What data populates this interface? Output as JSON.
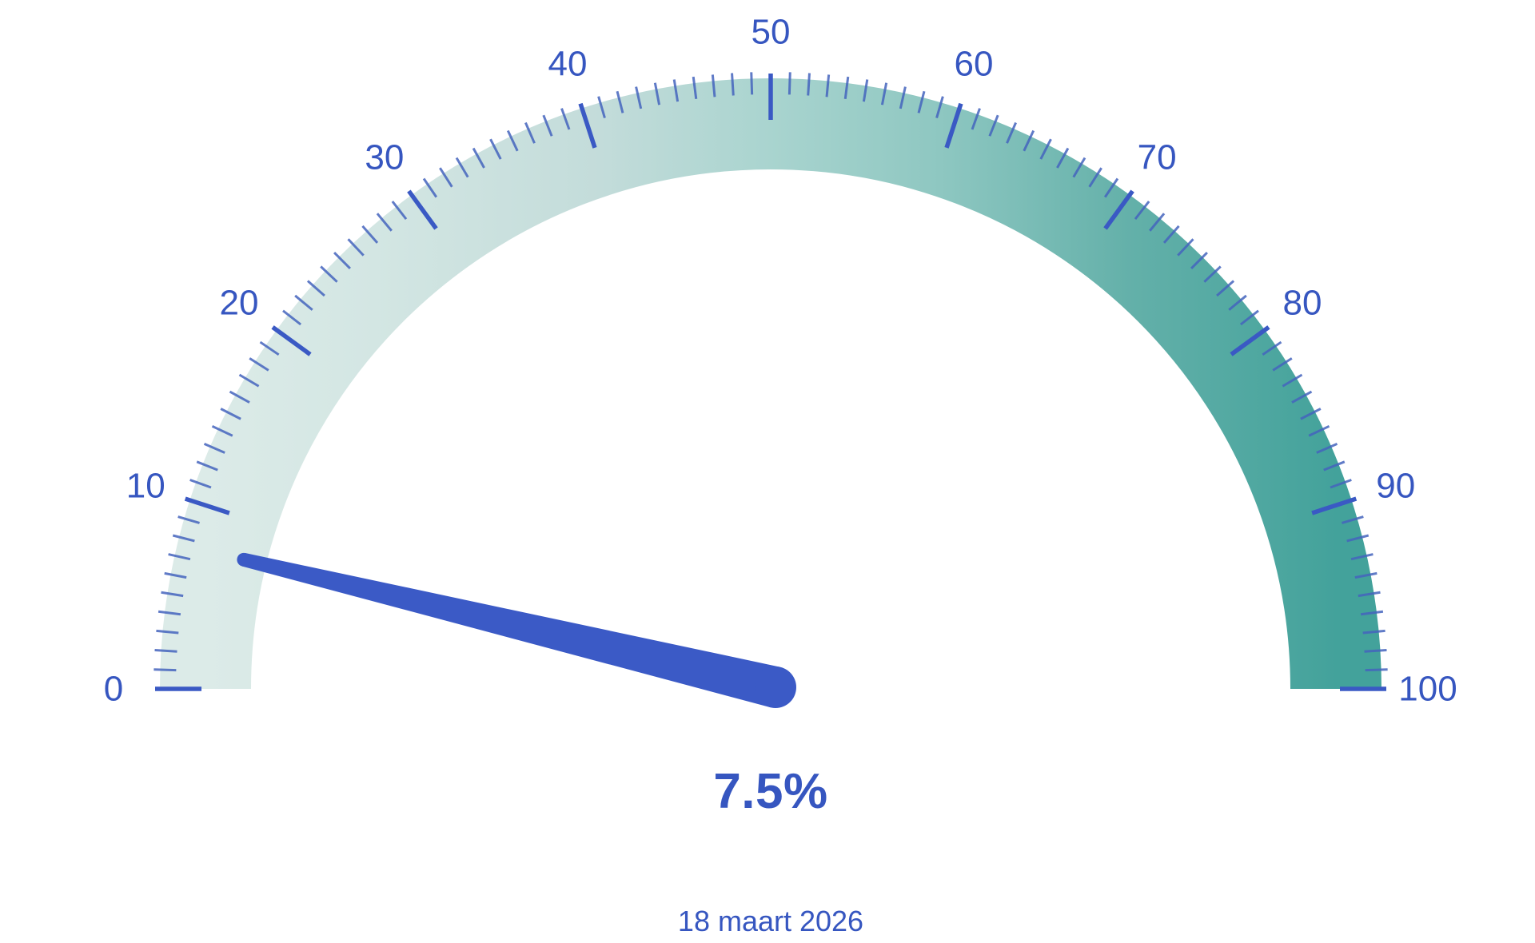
{
  "chart_data": {
    "type": "gauge",
    "value": 7.5,
    "unit": "%",
    "value_label": "7.5%",
    "date_label": "18 maart 2026",
    "min": 0,
    "max": 100,
    "start_angle_deg": 180,
    "end_angle_deg": 0,
    "minor_tick_interval": 1,
    "major_tick_interval": 10,
    "major_tick_values": [
      0,
      10,
      20,
      30,
      40,
      50,
      60,
      70,
      80,
      90,
      100
    ],
    "axis_labels": [
      "0",
      "10",
      "20",
      "30",
      "40",
      "50",
      "60",
      "70",
      "80",
      "90",
      "100"
    ],
    "legend": "none",
    "grid": "off",
    "colors": {
      "background": "#ffffff",
      "needle": "#3b5ac6",
      "major_tick": "#3a59c4",
      "minor_tick": "#4464bd",
      "axis_label": "#3656c0",
      "value_text": "#3656c0",
      "date_text": "#3656c0",
      "band_gradient": [
        {
          "offset": 0.0,
          "color": "#dcebe8"
        },
        {
          "offset": 0.15,
          "color": "#d3e6e3"
        },
        {
          "offset": 0.35,
          "color": "#c3dcda"
        },
        {
          "offset": 0.5,
          "color": "#a9d4cf"
        },
        {
          "offset": 0.65,
          "color": "#8ec7c1"
        },
        {
          "offset": 0.82,
          "color": "#63b0a9"
        },
        {
          "offset": 1.0,
          "color": "#43a29b"
        }
      ]
    }
  }
}
